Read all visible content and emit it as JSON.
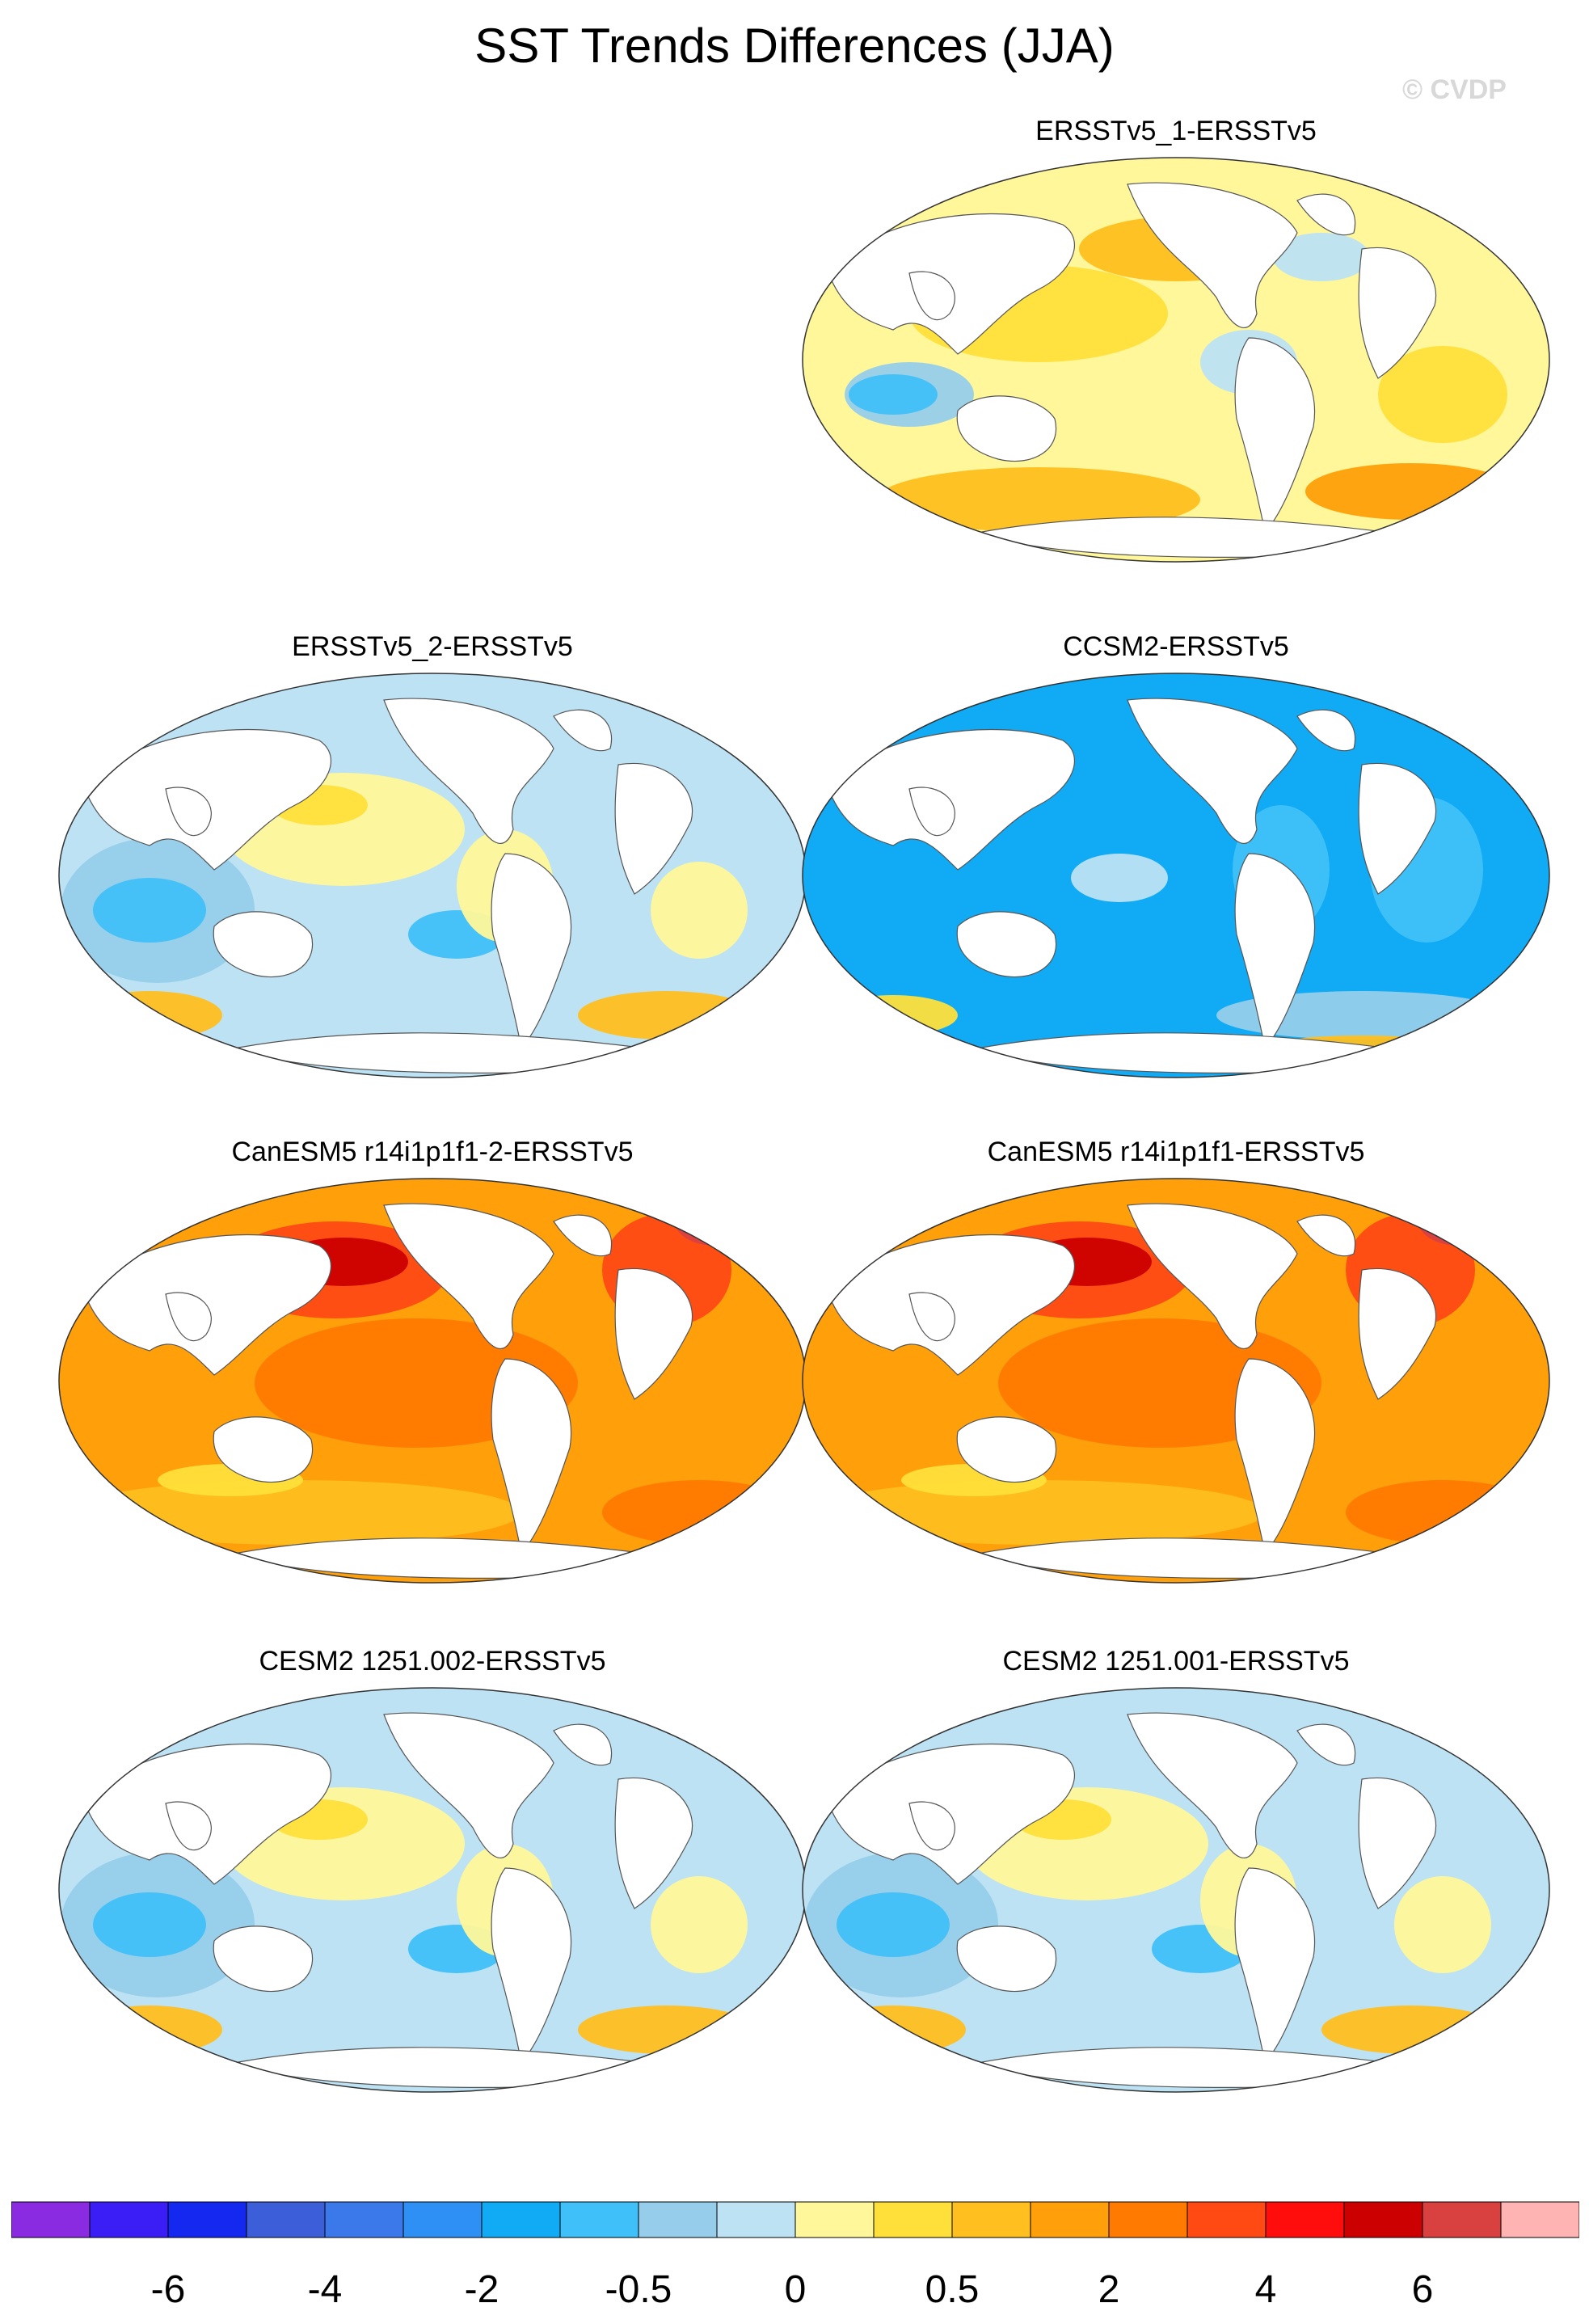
{
  "title": "SST Trends Differences (JJA)",
  "watermark": "© CVDP",
  "panels": [
    {
      "label": "ERSSTv5_1-ERSSTv5",
      "scheme": "warm-mix"
    },
    {
      "label": "ERSSTv5_2-ERSSTv5",
      "scheme": "cool-mix"
    },
    {
      "label": "CCSM2-ERSSTv5",
      "scheme": "cool"
    },
    {
      "label": "CanESM5 r14i1p1f1-2-ERSSTv5",
      "scheme": "hot"
    },
    {
      "label": "CanESM5 r14i1p1f1-ERSSTv5",
      "scheme": "hot"
    },
    {
      "label": "CESM2 1251.002-ERSSTv5",
      "scheme": "cool-mix"
    },
    {
      "label": "CESM2 1251.001-ERSSTv5",
      "scheme": "cool-mix"
    }
  ],
  "colorbar": {
    "colors": [
      "#8a2be2",
      "#3a1ef5",
      "#1428f0",
      "#3c5ed8",
      "#3b78ea",
      "#2e8ff5",
      "#10aaf5",
      "#40c0f8",
      "#96cdea",
      "#bde2f4",
      "#fff79a",
      "#ffdf3a",
      "#ffbf1f",
      "#ff9f0a",
      "#ff7a00",
      "#ff4a14",
      "#ff0c0c",
      "#cc0000",
      "#d94040",
      "#ffb4b4"
    ],
    "labels": [
      "-6",
      "-4",
      "-2",
      "-0.5",
      "0",
      "0.5",
      "2",
      "4",
      "6"
    ]
  }
}
